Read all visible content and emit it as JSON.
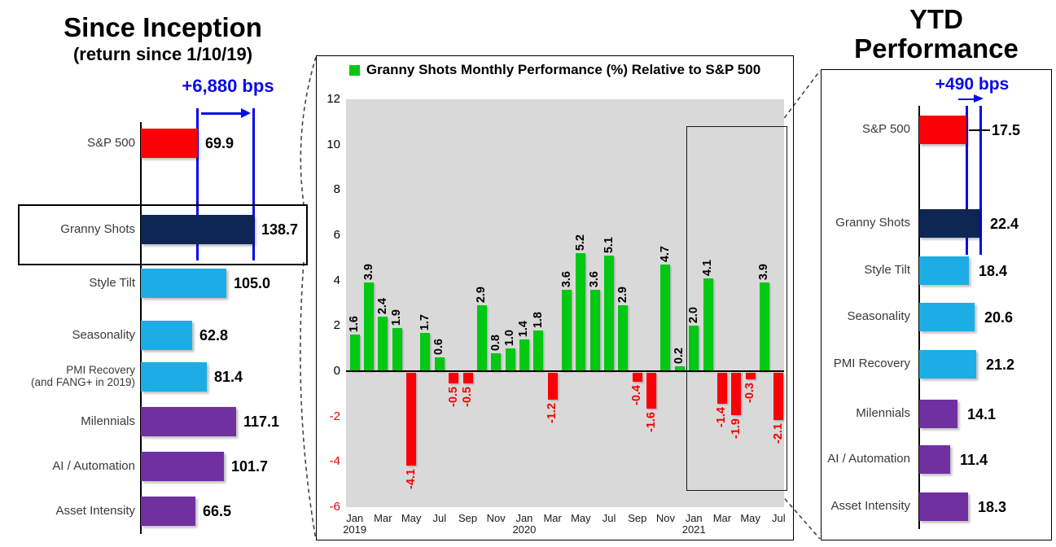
{
  "colors": {
    "red": "#FB0006",
    "navy": "#0D2654",
    "light_blue": "#1CADE4",
    "purple": "#7030A0",
    "green": "#00C813",
    "blue_annotation": "#0909E8",
    "plot_bg": "#D9D9D9",
    "negative_label": "#F50002"
  },
  "chart_data": [
    {
      "id": "since-inception",
      "type": "bar",
      "orientation": "horizontal",
      "title": "Since Inception",
      "subtitle": "(return since 1/10/19)",
      "annotation": "+6,880 bps",
      "categories": [
        "S&P 500",
        "Granny Shots",
        "Style Tilt",
        "Seasonality",
        "PMI Recovery\n(and FANG+ in 2019)",
        "Milennials",
        "AI / Automation",
        "Asset Intensity"
      ],
      "values": [
        69.9,
        138.7,
        105.0,
        62.8,
        81.4,
        117.1,
        101.7,
        66.5
      ],
      "value_labels": [
        "69.9",
        "138.7",
        "105.0",
        "62.8",
        "81.4",
        "117.1",
        "101.7",
        "66.5"
      ],
      "bar_colors": [
        "red",
        "navy",
        "light_blue",
        "light_blue",
        "light_blue",
        "purple",
        "purple",
        "purple"
      ],
      "highlighted_category": "Granny Shots"
    },
    {
      "id": "monthly-relative-performance",
      "type": "bar",
      "legend": "Granny Shots Monthly Performance (%) Relative to S&P 500",
      "x": [
        "Jan 2019",
        "Feb 2019",
        "Mar 2019",
        "Apr 2019",
        "May 2019",
        "Jun 2019",
        "Jul 2019",
        "Aug 2019",
        "Sep 2019",
        "Oct 2019",
        "Nov 2019",
        "Dec 2019",
        "Jan 2020",
        "Feb 2020",
        "Mar 2020",
        "Apr 2020",
        "May 2020",
        "Jun 2020",
        "Jul 2020",
        "Aug 2020",
        "Sep 2020",
        "Oct 2020",
        "Nov 2020",
        "Dec 2020",
        "Jan 2021",
        "Feb 2021",
        "Mar 2021",
        "Apr 2021",
        "May 2021",
        "Jun 2021",
        "Jul 2021"
      ],
      "values": [
        1.6,
        3.9,
        2.4,
        1.9,
        -4.1,
        1.7,
        0.6,
        -0.5,
        -0.5,
        2.9,
        0.8,
        1.0,
        1.4,
        1.8,
        -1.2,
        3.6,
        5.2,
        3.6,
        5.1,
        2.9,
        -0.4,
        -1.6,
        4.7,
        0.2,
        2.0,
        4.1,
        -1.4,
        -1.9,
        -0.3,
        3.9,
        -2.1
      ],
      "ylim": [
        -6,
        12
      ],
      "yticks": [
        12,
        10,
        8,
        6,
        4,
        2,
        0,
        -2,
        -4,
        -6
      ],
      "xtick_months_shown": [
        "Jan",
        "Mar",
        "May",
        "Jul",
        "Sep",
        "Nov",
        "Jan",
        "Mar",
        "May",
        "Jul",
        "Sep",
        "Nov",
        "Jan",
        "Mar",
        "May",
        "Jul"
      ],
      "year_labels": [
        "2019",
        "2020",
        "2021"
      ],
      "highlight_range": [
        "Jan 2021",
        "Jul 2021"
      ],
      "grid": false,
      "legend_position": "top"
    },
    {
      "id": "ytd-performance",
      "type": "bar",
      "orientation": "horizontal",
      "title": "YTD Performance",
      "title_line1": "YTD",
      "title_line2": "Performance",
      "annotation": "+490 bps",
      "categories": [
        "S&P 500",
        "Granny Shots",
        "Style Tilt",
        "Seasonality",
        "PMI Recovery",
        "Milennials",
        "AI / Automation",
        "Asset Intensity"
      ],
      "values": [
        17.5,
        22.4,
        18.4,
        20.6,
        21.2,
        14.1,
        11.4,
        18.3
      ],
      "value_labels": [
        "17.5",
        "22.4",
        "18.4",
        "20.6",
        "21.2",
        "14.1",
        "11.4",
        "18.3"
      ],
      "bar_colors": [
        "red",
        "navy",
        "light_blue",
        "light_blue",
        "light_blue",
        "purple",
        "purple",
        "purple"
      ],
      "highlighted_category": "Granny Shots"
    }
  ]
}
